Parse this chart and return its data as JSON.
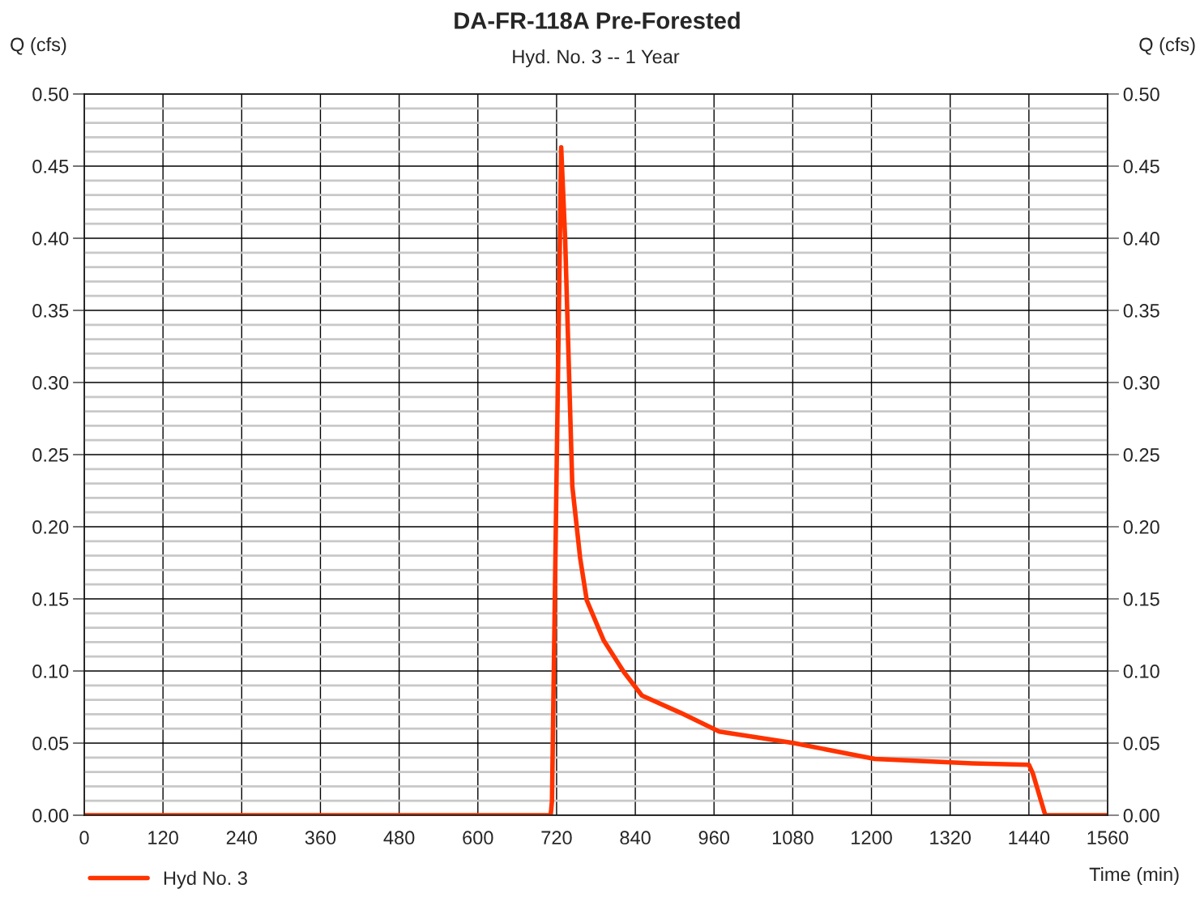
{
  "chart_data": {
    "type": "line",
    "title": "DA-FR-118A Pre-Forested",
    "subtitle": "Hyd. No. 3 -- 1 Year",
    "xlabel": "Time (min)",
    "ylabel": "Q (cfs)",
    "y2label": "Q (cfs)",
    "xlim": [
      0,
      1560
    ],
    "xticks": [
      0,
      120,
      240,
      360,
      480,
      600,
      720,
      840,
      960,
      1080,
      1200,
      1320,
      1440,
      1560
    ],
    "ylim": [
      0,
      0.5
    ],
    "yticks": [
      {
        "value": 0,
        "label": "0.00"
      },
      {
        "value": 0.05,
        "label": "0.05"
      },
      {
        "value": 0.1,
        "label": "0.10"
      },
      {
        "value": 0.15,
        "label": "0.15"
      },
      {
        "value": 0.2,
        "label": "0.20"
      },
      {
        "value": 0.25,
        "label": "0.25"
      },
      {
        "value": 0.3,
        "label": "0.30"
      },
      {
        "value": 0.35,
        "label": "0.35"
      },
      {
        "value": 0.4,
        "label": "0.40"
      },
      {
        "value": 0.45,
        "label": "0.45"
      },
      {
        "value": 0.5,
        "label": "0.50"
      }
    ],
    "y2lim": [
      0,
      0.5
    ],
    "y2ticks": [
      {
        "value": 0,
        "label": "0.00"
      },
      {
        "value": 0.05,
        "label": "0.05"
      },
      {
        "value": 0.1,
        "label": "0.10"
      },
      {
        "value": 0.15,
        "label": "0.15"
      },
      {
        "value": 0.2,
        "label": "0.20"
      },
      {
        "value": 0.25,
        "label": "0.25"
      },
      {
        "value": 0.3,
        "label": "0.30"
      },
      {
        "value": 0.35,
        "label": "0.35"
      },
      {
        "value": 0.4,
        "label": "0.40"
      },
      {
        "value": 0.45,
        "label": "0.45"
      },
      {
        "value": 0.5,
        "label": "0.50"
      }
    ],
    "grid": true,
    "legend": "bottom left",
    "marker": "none",
    "line_style": "solid",
    "series": [
      {
        "name": "Hyd No. 3",
        "color": "#ff3300",
        "x": [
          0,
          711,
          713,
          727,
          733,
          744,
          756,
          766,
          792,
          823,
          850,
          909,
          968,
          1082,
          1205,
          1354,
          1440,
          1446,
          1465,
          1560
        ],
        "values": [
          0,
          0,
          0.01,
          0.463,
          0.4,
          0.228,
          0.178,
          0.149,
          0.121,
          0.099,
          0.083,
          0.071,
          0.058,
          0.05,
          0.039,
          0.036,
          0.035,
          0.029,
          0,
          0
        ]
      }
    ]
  }
}
